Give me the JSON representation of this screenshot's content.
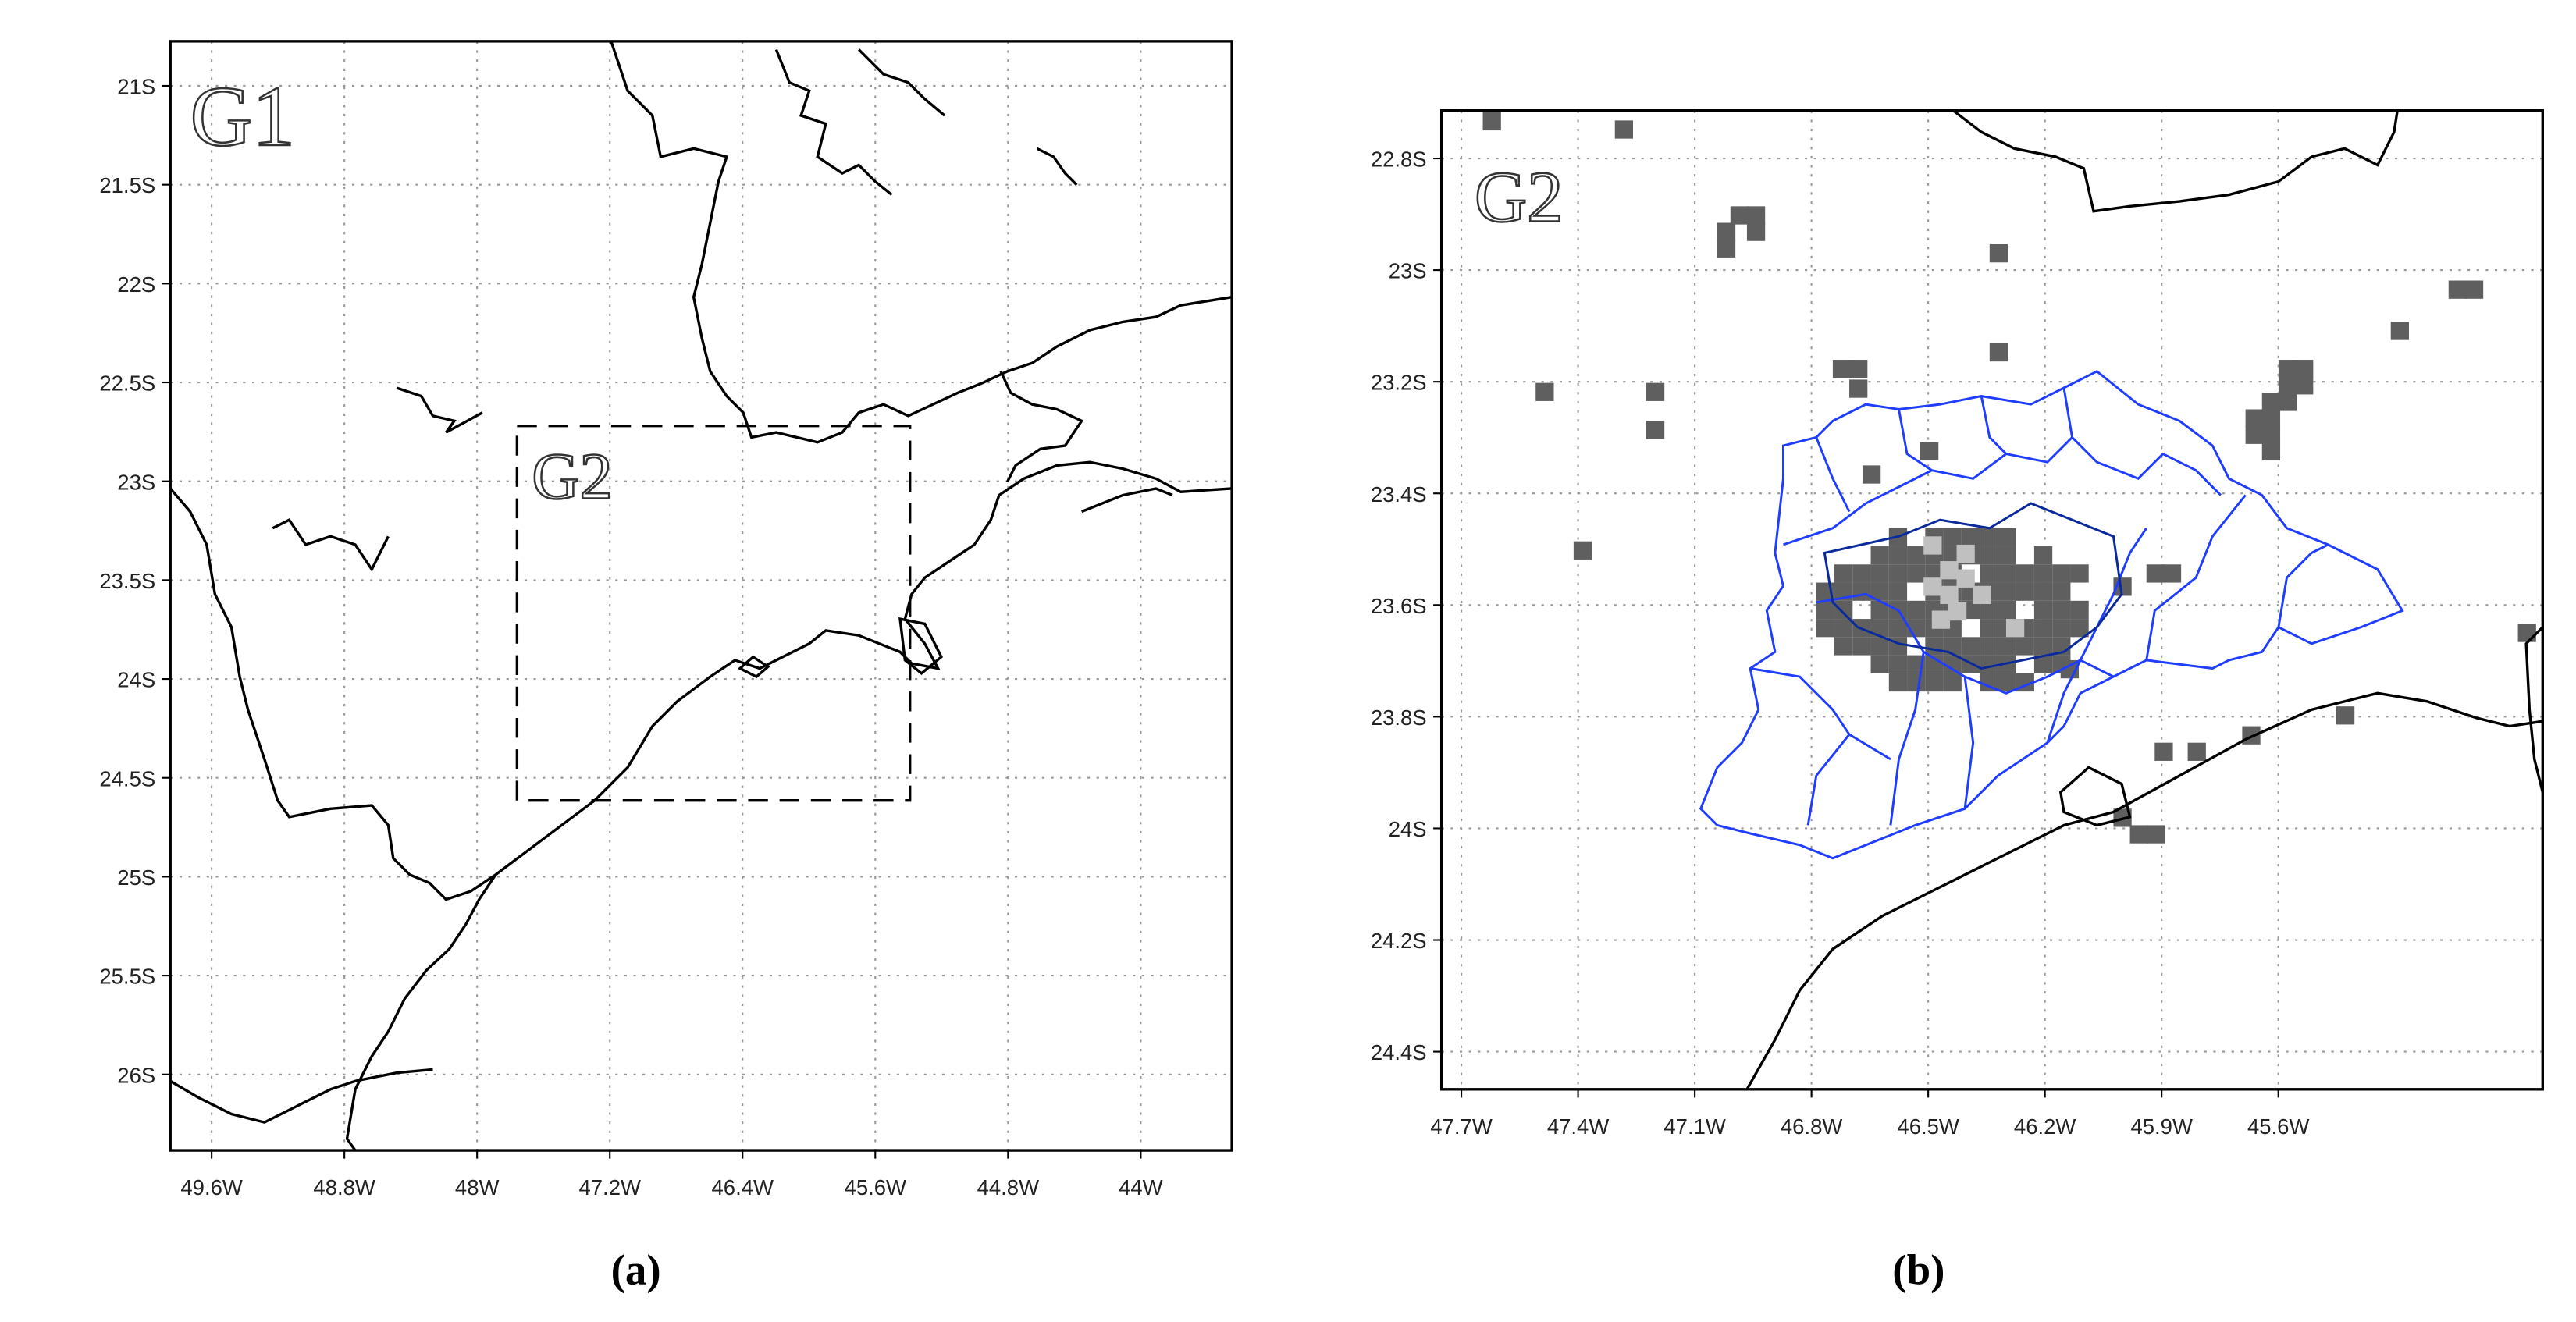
{
  "panels": [
    {
      "label": "G1",
      "inset_label": "G2",
      "caption": "(a)",
      "xtick_labels": [
        "49.6W",
        "48.8W",
        "48W",
        "47.2W",
        "46.4W",
        "45.6W",
        "44.8W",
        "44W"
      ],
      "ytick_labels": [
        "21S",
        "21.5S",
        "22S",
        "22.5S",
        "23S",
        "23.5S",
        "24S",
        "24.5S",
        "25S",
        "25.5S",
        "26S"
      ]
    },
    {
      "label": "G2",
      "caption": "(b)",
      "xtick_labels": [
        "47.7W",
        "47.4W",
        "47.1W",
        "46.8W",
        "46.5W",
        "46.2W",
        "45.9W",
        "45.6W"
      ],
      "ytick_labels": [
        "22.8S",
        "23S",
        "23.2S",
        "23.4S",
        "23.6S",
        "23.8S",
        "24S",
        "24.2S",
        "24.4S"
      ]
    }
  ]
}
